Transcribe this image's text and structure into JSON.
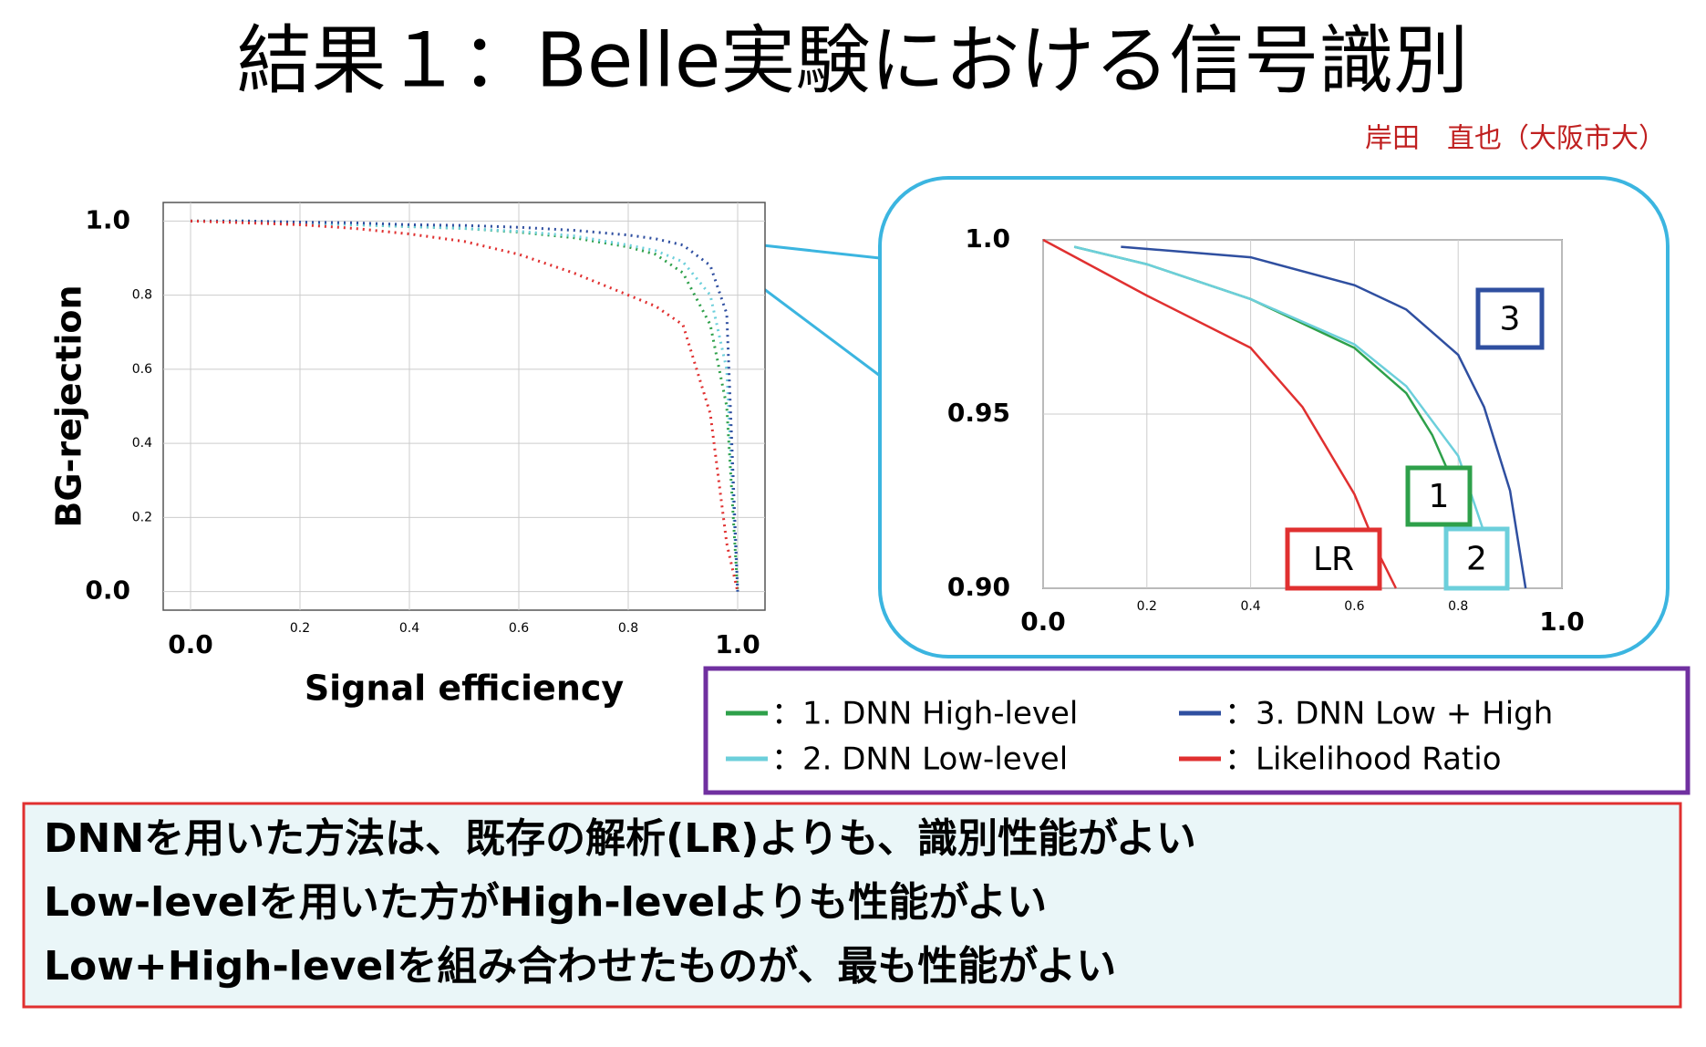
{
  "title": "結果１：Belle実験における信号識別",
  "author": "岸田　直也（大阪市大）",
  "chart_data": [
    {
      "type": "line",
      "line_style": "dotted",
      "grid": true,
      "x_label": "Signal efficiency",
      "y_label": "BG-rejection",
      "xlim": [
        -0.05,
        1.05
      ],
      "ylim": [
        -0.05,
        1.05
      ],
      "xticks": [
        {
          "value": 0,
          "label": "0.0"
        },
        0.2,
        0.4,
        0.6,
        0.8,
        {
          "value": 1,
          "label": "1.0"
        }
      ],
      "yticks": [
        {
          "value": 0,
          "label": "0.0"
        },
        0.2,
        0.4,
        0.6,
        0.8,
        {
          "value": 1,
          "label": "1.0"
        }
      ],
      "x": [
        0,
        0.1,
        0.2,
        0.3,
        0.4,
        0.5,
        0.6,
        0.7,
        0.8,
        0.85,
        0.9,
        0.95,
        0.98,
        1.0
      ],
      "series": [
        {
          "name": "：1. DNN High-level",
          "color": "#2ea04a",
          "values": [
            1,
            1,
            0.995,
            0.99,
            0.985,
            0.98,
            0.97,
            0.955,
            0.93,
            0.91,
            0.86,
            0.72,
            0.5,
            0
          ]
        },
        {
          "name": "：2. DNN Low-level",
          "color": "#6ccfdb",
          "values": [
            1,
            1,
            0.995,
            0.99,
            0.985,
            0.98,
            0.972,
            0.96,
            0.935,
            0.92,
            0.89,
            0.8,
            0.6,
            0
          ]
        },
        {
          "name": "：3. DNN Low + High",
          "color": "#2f4fa0",
          "values": [
            1,
            1,
            0.997,
            0.995,
            0.99,
            0.988,
            0.983,
            0.975,
            0.962,
            0.952,
            0.935,
            0.88,
            0.75,
            0
          ]
        },
        {
          "name": "：Likelihood Ratio",
          "color": "#e03030",
          "values": [
            1,
            0.995,
            0.99,
            0.98,
            0.965,
            0.945,
            0.91,
            0.86,
            0.8,
            0.77,
            0.72,
            0.48,
            0.13,
            0
          ]
        }
      ]
    },
    {
      "type": "line",
      "line_style": "solid",
      "grid": true,
      "xlim": [
        0,
        1
      ],
      "ylim": [
        0.9,
        1.0
      ],
      "xticks": [
        {
          "value": 0,
          "label": "0.0"
        },
        0.2,
        0.4,
        0.6,
        0.8,
        {
          "value": 1,
          "label": "1.0"
        }
      ],
      "yticks": [
        {
          "value": 0.9,
          "label": "0.90"
        },
        0.95,
        {
          "value": 1,
          "label": "1.0"
        }
      ],
      "series": [
        {
          "color": "#2ea04a",
          "x": [
            0.06,
            0.2,
            0.4,
            0.6,
            0.7,
            0.75,
            0.8,
            0.83
          ],
          "values": [
            0.998,
            0.993,
            0.983,
            0.969,
            0.956,
            0.944,
            0.927,
            0.9
          ]
        },
        {
          "color": "#6ccfdb",
          "x": [
            0.06,
            0.2,
            0.4,
            0.6,
            0.7,
            0.8,
            0.85,
            0.88
          ],
          "values": [
            0.998,
            0.993,
            0.983,
            0.97,
            0.958,
            0.938,
            0.916,
            0.9
          ]
        },
        {
          "color": "#2f4fa0",
          "x": [
            0.15,
            0.4,
            0.6,
            0.7,
            0.8,
            0.85,
            0.9,
            0.93
          ],
          "values": [
            0.998,
            0.995,
            0.987,
            0.98,
            0.967,
            0.952,
            0.928,
            0.9
          ]
        },
        {
          "color": "#e03030",
          "x": [
            0,
            0.2,
            0.4,
            0.5,
            0.6,
            0.65,
            0.68
          ],
          "values": [
            1,
            0.984,
            0.969,
            0.952,
            0.927,
            0.909,
            0.9
          ]
        }
      ],
      "annotations": [
        {
          "text": "3",
          "color": "#2f4fa0"
        },
        {
          "text": "1",
          "color": "#2ea04a"
        },
        {
          "text": "2",
          "color": "#6ccfdb"
        },
        {
          "text": "LR",
          "color": "#e03030"
        }
      ]
    }
  ],
  "conclusions": [
    "DNNを用いた方法は、既存の解析(LR)よりも、識別性能がよい",
    "Low-levelを用いた方がHigh-levelよりも性能がよい",
    "Low+High-levelを組み合わせたものが、最も性能がよい"
  ]
}
